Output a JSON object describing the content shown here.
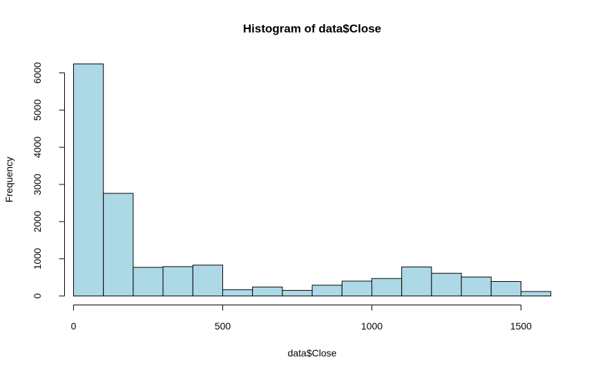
{
  "chart_data": {
    "type": "bar",
    "title": "Histogram of data$Close",
    "xlabel": "data$Close",
    "ylabel": "Frequency",
    "bin_width": 100,
    "bins": [
      {
        "start": 0,
        "end": 100,
        "count": 6240
      },
      {
        "start": 100,
        "end": 200,
        "count": 2760
      },
      {
        "start": 200,
        "end": 300,
        "count": 770
      },
      {
        "start": 300,
        "end": 400,
        "count": 790
      },
      {
        "start": 400,
        "end": 500,
        "count": 830
      },
      {
        "start": 500,
        "end": 600,
        "count": 170
      },
      {
        "start": 600,
        "end": 700,
        "count": 240
      },
      {
        "start": 700,
        "end": 800,
        "count": 150
      },
      {
        "start": 800,
        "end": 900,
        "count": 290
      },
      {
        "start": 900,
        "end": 1000,
        "count": 400
      },
      {
        "start": 1000,
        "end": 1100,
        "count": 470
      },
      {
        "start": 1100,
        "end": 1200,
        "count": 780
      },
      {
        "start": 1200,
        "end": 1300,
        "count": 610
      },
      {
        "start": 1300,
        "end": 1400,
        "count": 510
      },
      {
        "start": 1400,
        "end": 1500,
        "count": 390
      },
      {
        "start": 1500,
        "end": 1600,
        "count": 120
      }
    ],
    "xlim": [
      0,
      1600
    ],
    "ylim": [
      0,
      6000
    ],
    "x_ticks": [
      0,
      500,
      1000,
      1500
    ],
    "y_ticks": [
      0,
      1000,
      2000,
      3000,
      4000,
      5000,
      6000
    ],
    "grid": false,
    "colors": {
      "bar_fill": "#add8e6",
      "bar_stroke": "#000000"
    }
  }
}
